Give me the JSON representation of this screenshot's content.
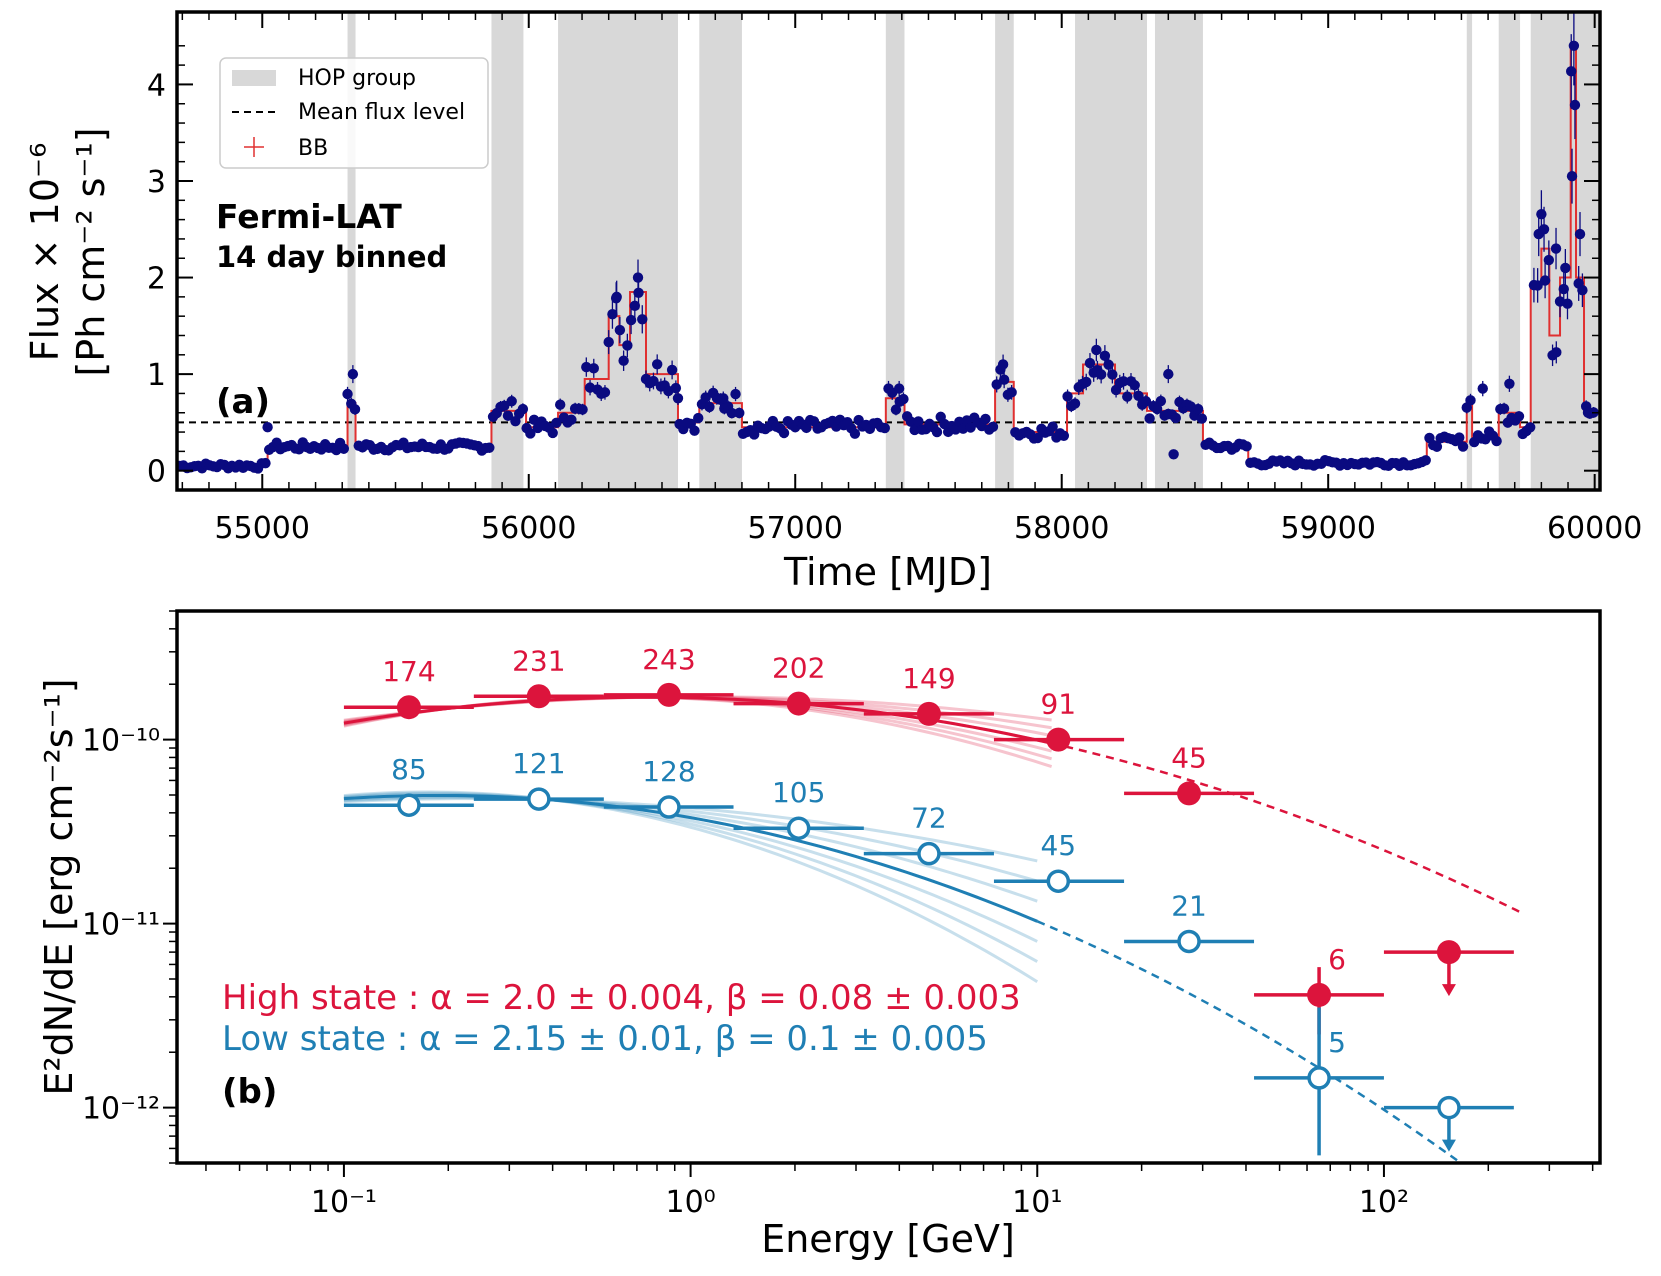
{
  "chart_data": [
    {
      "panel_label": "(a)",
      "type": "scatter",
      "xlabel": "Time [MJD]",
      "ylabel_line1": "Flux × 10⁻⁶",
      "ylabel_line2": "[Ph cm⁻² s⁻¹]",
      "xlim": [
        54680,
        60020
      ],
      "ylim": [
        -0.2,
        4.75
      ],
      "xticks": [
        55000,
        56000,
        57000,
        58000,
        59000,
        60000
      ],
      "xtick_labels": [
        "55000",
        "56000",
        "57000",
        "58000",
        "59000",
        "60000"
      ],
      "yticks": [
        0,
        1,
        2,
        3,
        4
      ],
      "ytick_labels": [
        "0",
        "1",
        "2",
        "3",
        "4"
      ],
      "annotation_line1": "Fermi-LAT",
      "annotation_line2": "14 day binned",
      "mean_flux_level": 0.5,
      "hop_groups": [
        [
          55320,
          55350
        ],
        [
          55860,
          55980
        ],
        [
          56110,
          56560
        ],
        [
          56640,
          56800
        ],
        [
          57340,
          57410
        ],
        [
          57750,
          57820
        ],
        [
          58050,
          58320
        ],
        [
          58350,
          58530
        ],
        [
          59520,
          59540
        ],
        [
          59640,
          59720
        ],
        [
          59760,
          60020
        ]
      ],
      "bb_blocks": [
        [
          54680,
          55020,
          0.05
        ],
        [
          55020,
          55320,
          0.25
        ],
        [
          55320,
          55350,
          0.7
        ],
        [
          55350,
          55860,
          0.25
        ],
        [
          55860,
          55990,
          0.62
        ],
        [
          55990,
          56110,
          0.45
        ],
        [
          56110,
          56210,
          0.6
        ],
        [
          56210,
          56300,
          0.95
        ],
        [
          56300,
          56340,
          1.6
        ],
        [
          56340,
          56380,
          1.3
        ],
        [
          56380,
          56440,
          1.85
        ],
        [
          56440,
          56560,
          1.0
        ],
        [
          56560,
          56640,
          0.5
        ],
        [
          56640,
          56800,
          0.7
        ],
        [
          56800,
          57340,
          0.45
        ],
        [
          57340,
          57410,
          0.75
        ],
        [
          57410,
          57750,
          0.48
        ],
        [
          57750,
          57820,
          0.92
        ],
        [
          57820,
          58020,
          0.4
        ],
        [
          58020,
          58080,
          0.8
        ],
        [
          58080,
          58200,
          1.1
        ],
        [
          58200,
          58320,
          0.8
        ],
        [
          58320,
          58530,
          0.62
        ],
        [
          58530,
          58700,
          0.25
        ],
        [
          58700,
          59370,
          0.08
        ],
        [
          59370,
          59520,
          0.3
        ],
        [
          59520,
          59540,
          0.7
        ],
        [
          59540,
          59640,
          0.35
        ],
        [
          59640,
          59720,
          0.6
        ],
        [
          59720,
          59760,
          0.45
        ],
        [
          59760,
          59800,
          1.9
        ],
        [
          59800,
          59830,
          2.3
        ],
        [
          59830,
          59870,
          1.4
        ],
        [
          59870,
          59910,
          2.0
        ],
        [
          59910,
          59930,
          4.4
        ],
        [
          59930,
          59960,
          2.0
        ],
        [
          59960,
          60020,
          0.6
        ]
      ],
      "legend": [
        {
          "key": "hop",
          "label": "HOP group"
        },
        {
          "key": "mean",
          "label": "Mean flux level"
        },
        {
          "key": "bb",
          "label": "BB"
        }
      ],
      "points_key_values": [
        [
          55020,
          0.45
        ],
        [
          55340,
          1.0
        ],
        [
          56330,
          1.8
        ],
        [
          56410,
          2.0
        ],
        [
          56560,
          0.75
        ],
        [
          56730,
          0.75
        ],
        [
          57390,
          0.85
        ],
        [
          57780,
          1.1
        ],
        [
          58130,
          1.25
        ],
        [
          58400,
          1.0
        ],
        [
          58420,
          0.17
        ],
        [
          59580,
          0.85
        ],
        [
          59680,
          0.9
        ],
        [
          59790,
          2.45
        ],
        [
          59810,
          2.5
        ],
        [
          59855,
          2.3
        ],
        [
          59890,
          2.1
        ],
        [
          59915,
          3.05
        ],
        [
          59922,
          4.4
        ],
        [
          59945,
          2.45
        ],
        [
          59975,
          0.6
        ]
      ],
      "colors": {
        "points": "#0a0a80",
        "bb": "#e03030",
        "hop": "#d8d8d8",
        "mean": "#000000"
      }
    },
    {
      "panel_label": "(b)",
      "type": "scatter",
      "xlabel": "Energy [GeV]",
      "ylabel": "E²dN/dE [erg cm⁻²s⁻¹]",
      "xscale": "log",
      "yscale": "log",
      "xlim": [
        0.033,
        420
      ],
      "ylim": [
        5e-13,
        5e-10
      ],
      "xtick_labels": [
        "10⁻¹",
        "10⁰",
        "10¹",
        "10²"
      ],
      "ytick_labels": [
        "10⁻¹²",
        "10⁻¹¹",
        "10⁻¹⁰"
      ],
      "series": [
        {
          "name": "High state",
          "fit_label": "High state : α = 2.0 ± 0.004, β =  0.08 ± 0.003",
          "alpha": 2.0,
          "alpha_err": 0.004,
          "beta": 0.08,
          "beta_err": 0.003,
          "color": "#dc143c",
          "marker": "filled",
          "fit_pivot": [
            0.75,
            1.7e-10
          ],
          "fit_solid_range": [
            0.1,
            11
          ],
          "fit_dashed_range": [
            11,
            250
          ],
          "points": [
            {
              "x": 0.154,
              "y": 1.5e-10,
              "xlo": 0.1,
              "xhi": 0.237,
              "count": "174"
            },
            {
              "x": 0.365,
              "y": 1.72e-10,
              "xlo": 0.237,
              "xhi": 0.562,
              "count": "231"
            },
            {
              "x": 0.866,
              "y": 1.75e-10,
              "xlo": 0.562,
              "xhi": 1.33,
              "count": "243"
            },
            {
              "x": 2.05,
              "y": 1.57e-10,
              "xlo": 1.33,
              "xhi": 3.16,
              "count": "202"
            },
            {
              "x": 4.87,
              "y": 1.38e-10,
              "xlo": 3.16,
              "xhi": 7.5,
              "count": "149"
            },
            {
              "x": 11.5,
              "y": 1e-10,
              "xlo": 7.5,
              "xhi": 17.8,
              "count": "91"
            },
            {
              "x": 27.4,
              "y": 5.1e-11,
              "xlo": 17.8,
              "xhi": 42.2,
              "count": "45"
            },
            {
              "x": 65,
              "y": 4.1e-12,
              "xlo": 42.2,
              "xhi": 100,
              "ylo": 2.5e-12,
              "yhi": 5.8e-12,
              "count": "6"
            },
            {
              "x": 154,
              "y": 7e-12,
              "xlo": 100,
              "xhi": 237,
              "upper_limit": true
            }
          ]
        },
        {
          "name": "Low state",
          "fit_label": "Low state : α = 2.15 ± 0.01, β =  0.1 ± 0.005",
          "alpha": 2.15,
          "alpha_err": 0.01,
          "beta": 0.1,
          "beta_err": 0.005,
          "color": "#1f7fb4",
          "marker": "open",
          "fit_pivot": [
            0.4,
            4.7e-11
          ],
          "fit_solid_range": [
            0.1,
            10
          ],
          "fit_dashed_range": [
            10,
            250
          ],
          "points": [
            {
              "x": 0.154,
              "y": 4.4e-11,
              "xlo": 0.1,
              "xhi": 0.237,
              "count": "85"
            },
            {
              "x": 0.365,
              "y": 4.75e-11,
              "xlo": 0.237,
              "xhi": 0.562,
              "count": "121"
            },
            {
              "x": 0.866,
              "y": 4.3e-11,
              "xlo": 0.562,
              "xhi": 1.33,
              "count": "128"
            },
            {
              "x": 2.05,
              "y": 3.3e-11,
              "xlo": 1.33,
              "xhi": 3.16,
              "count": "105"
            },
            {
              "x": 4.87,
              "y": 2.4e-11,
              "xlo": 3.16,
              "xhi": 7.5,
              "count": "72"
            },
            {
              "x": 11.5,
              "y": 1.7e-11,
              "xlo": 7.5,
              "xhi": 17.8,
              "count": "45"
            },
            {
              "x": 27.4,
              "y": 8e-12,
              "xlo": 17.8,
              "xhi": 42.2,
              "count": "21"
            },
            {
              "x": 65,
              "y": 1.45e-12,
              "xlo": 42.2,
              "xhi": 100,
              "ylo": 5.5e-13,
              "yhi": 3.5e-12,
              "count": "5"
            },
            {
              "x": 154,
              "y": 1e-12,
              "xlo": 100,
              "xhi": 237,
              "upper_limit": true
            }
          ]
        }
      ]
    }
  ]
}
